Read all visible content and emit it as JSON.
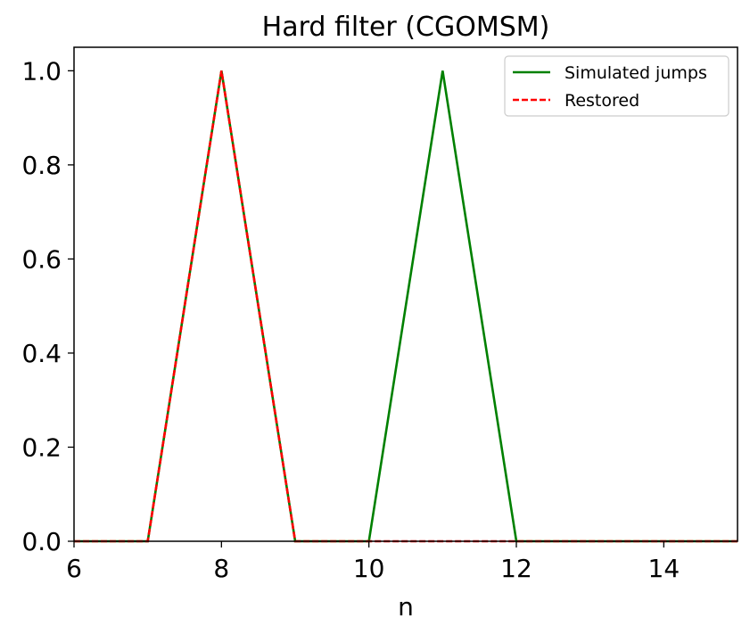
{
  "chart_data": {
    "type": "line",
    "title": "Hard filter (CGOMSM)",
    "xlabel": "n",
    "ylabel": "",
    "xlim": [
      6,
      15
    ],
    "ylim": [
      0,
      1.05
    ],
    "xticks": [
      6,
      8,
      10,
      12,
      14
    ],
    "yticks": [
      0.0,
      0.2,
      0.4,
      0.6,
      0.8,
      1.0
    ],
    "xtick_labels": [
      "6",
      "8",
      "10",
      "12",
      "14"
    ],
    "ytick_labels": [
      "0.0",
      "0.2",
      "0.4",
      "0.6",
      "0.8",
      "1.0"
    ],
    "grid": false,
    "legend_position": "top-right",
    "series": [
      {
        "name": "Simulated jumps",
        "color": "#008000",
        "style": "solid",
        "x": [
          6,
          7,
          8,
          9,
          10,
          11,
          12,
          13,
          14,
          15
        ],
        "y": [
          0,
          0,
          1,
          0,
          0,
          1,
          0,
          0,
          0,
          0
        ]
      },
      {
        "name": "Restored",
        "color": "#ff0000",
        "style": "dashed",
        "x": [
          6,
          7,
          8,
          9,
          10,
          11,
          12,
          13,
          14,
          15
        ],
        "y": [
          0,
          0,
          1,
          0,
          0,
          0,
          0,
          0,
          0,
          0
        ]
      }
    ]
  }
}
